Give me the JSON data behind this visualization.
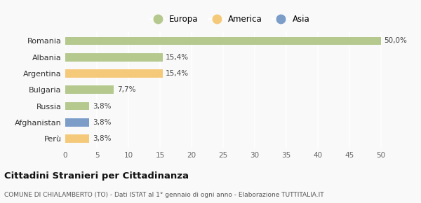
{
  "categories": [
    "Romania",
    "Albania",
    "Argentina",
    "Bulgaria",
    "Russia",
    "Afghanistan",
    "Perù"
  ],
  "values": [
    50.0,
    15.4,
    15.4,
    7.7,
    3.8,
    3.8,
    3.8
  ],
  "labels": [
    "50,0%",
    "15,4%",
    "15,4%",
    "7,7%",
    "3,8%",
    "3,8%",
    "3,8%"
  ],
  "colors": [
    "#b5c98e",
    "#b5c98e",
    "#f5c97a",
    "#b5c98e",
    "#b5c98e",
    "#7b9dc8",
    "#f5c97a"
  ],
  "legend": [
    {
      "label": "Europa",
      "color": "#b5c98e"
    },
    {
      "label": "America",
      "color": "#f5c97a"
    },
    {
      "label": "Asia",
      "color": "#7b9dc8"
    }
  ],
  "xlim": [
    0,
    52
  ],
  "xticks": [
    0,
    5,
    10,
    15,
    20,
    25,
    30,
    35,
    40,
    45,
    50
  ],
  "title": "Cittadini Stranieri per Cittadinanza",
  "subtitle": "COMUNE DI CHIALAMBERTO (TO) - Dati ISTAT al 1° gennaio di ogni anno - Elaborazione TUTTITALIA.IT",
  "background_color": "#f9f9f9",
  "grid_color": "#ffffff",
  "bar_height": 0.5
}
